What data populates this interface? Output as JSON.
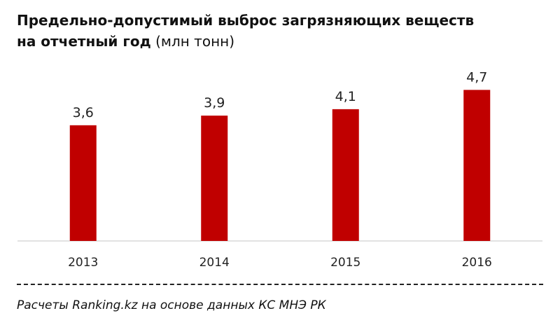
{
  "chart_data": {
    "type": "bar",
    "title_line1": "Предельно-допустимый выброс загрязняющих веществ",
    "title_line2": "на отчетный год",
    "unit": "(млн тонн)",
    "categories": [
      "2013",
      "2014",
      "2015",
      "2016"
    ],
    "values": [
      3.6,
      3.9,
      4.1,
      4.7
    ],
    "value_labels": [
      "3,6",
      "3,9",
      "4,1",
      "4,7"
    ],
    "ylim": [
      0,
      5.1
    ],
    "bar_color": "#c00000",
    "axis_color": "#d9d9d9",
    "grid": false
  },
  "source": "Расчеты Ranking.kz на основе данных КС МНЭ РК"
}
